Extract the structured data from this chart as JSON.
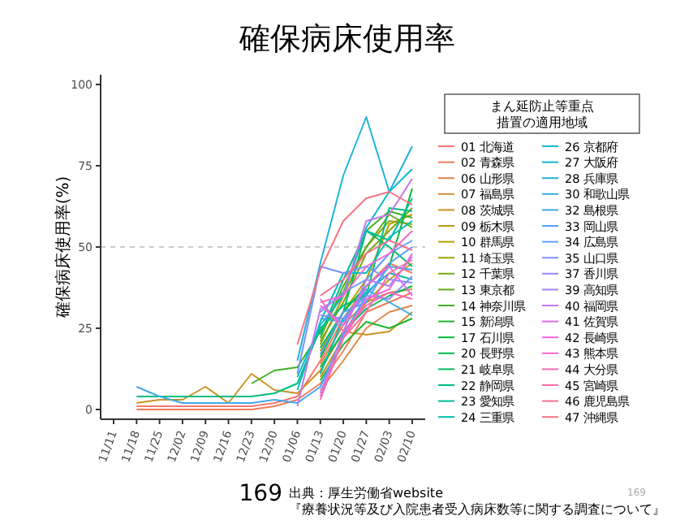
{
  "chart_data": {
    "type": "line",
    "title": "確保病床使用率",
    "ylabel": "確保病床使用率(%)",
    "legend_title": "まん延防止等重点措置の適用地域",
    "legend": "right",
    "grid": false,
    "marker": "none",
    "line_style": "solid",
    "categories": [
      "11/11",
      "11/18",
      "11/25",
      "12/02",
      "12/09",
      "12/16",
      "12/23",
      "12/30",
      "01/06",
      "01/13",
      "01/20",
      "01/27",
      "02/03",
      "02/10"
    ],
    "ylim": [
      -3,
      103
    ],
    "yticks": [
      0,
      25,
      50,
      75,
      100
    ],
    "ref_lines": [
      {
        "axis": "y",
        "value": 50,
        "color": "#bbbbbb",
        "line_style": "dashed"
      }
    ],
    "annotations": [
      "169",
      "出典：厚生労働省website",
      "『療養状況等及び入院患者受入病床数等に関する調査について』",
      "169"
    ],
    "series": [
      {
        "name": "01 北海道",
        "color": "#F8766D",
        "values": [
          null,
          1,
          1,
          1,
          1,
          1,
          1,
          2,
          4,
          15,
          28,
          38,
          45,
          42
        ]
      },
      {
        "name": "02 青森県",
        "color": "#ED7D5B",
        "values": [
          null,
          0,
          0,
          0,
          0,
          0,
          0,
          1,
          3,
          8,
          18,
          30,
          33,
          36
        ]
      },
      {
        "name": "06 山形県",
        "color": "#E28449",
        "values": [
          null,
          null,
          null,
          null,
          null,
          null,
          null,
          null,
          null,
          6,
          15,
          25,
          30,
          32
        ]
      },
      {
        "name": "07 福島県",
        "color": "#D88B37",
        "values": [
          null,
          null,
          null,
          null,
          null,
          null,
          null,
          null,
          null,
          14,
          26,
          33,
          36,
          37
        ]
      },
      {
        "name": "08 茨城県",
        "color": "#CD9124",
        "values": [
          null,
          2,
          3,
          3,
          7,
          2,
          11,
          6,
          5,
          12,
          24,
          23,
          24,
          30
        ]
      },
      {
        "name": "09 栃木県",
        "color": "#C29812",
        "values": [
          null,
          null,
          null,
          null,
          null,
          null,
          null,
          null,
          null,
          10,
          22,
          33,
          40,
          45
        ]
      },
      {
        "name": "10 群馬県",
        "color": "#B79F00",
        "values": [
          null,
          null,
          null,
          null,
          null,
          null,
          null,
          null,
          null,
          18,
          30,
          40,
          57,
          60
        ]
      },
      {
        "name": "11 埼玉県",
        "color": "#99A409",
        "values": [
          null,
          null,
          null,
          null,
          null,
          null,
          null,
          null,
          null,
          20,
          35,
          50,
          58,
          57
        ]
      },
      {
        "name": "12 千葉県",
        "color": "#7AA813",
        "values": [
          null,
          null,
          null,
          null,
          null,
          null,
          null,
          null,
          null,
          21,
          33,
          48,
          55,
          62
        ]
      },
      {
        "name": "13 東京都",
        "color": "#5CAD1C",
        "values": [
          null,
          null,
          null,
          null,
          null,
          null,
          null,
          null,
          null,
          22,
          38,
          50,
          60,
          56
        ]
      },
      {
        "name": "14 神奈川県",
        "color": "#3DB125",
        "values": [
          null,
          null,
          null,
          null,
          null,
          null,
          8,
          12,
          13,
          24,
          36,
          55,
          61,
          59
        ]
      },
      {
        "name": "15 新潟県",
        "color": "#1FB62F",
        "values": [
          null,
          null,
          null,
          null,
          null,
          null,
          null,
          null,
          null,
          9,
          20,
          27,
          25,
          28
        ]
      },
      {
        "name": "17 石川県",
        "color": "#00BA38",
        "values": [
          null,
          null,
          null,
          null,
          null,
          null,
          null,
          null,
          null,
          16,
          30,
          38,
          44,
          68
        ]
      },
      {
        "name": "20 長野県",
        "color": "#00BB4F",
        "values": [
          null,
          null,
          null,
          null,
          null,
          null,
          null,
          null,
          null,
          13,
          24,
          31,
          35,
          38
        ]
      },
      {
        "name": "21 岐阜県",
        "color": "#00BC67",
        "values": [
          null,
          null,
          null,
          null,
          null,
          null,
          null,
          null,
          null,
          19,
          30,
          55,
          50,
          44
        ]
      },
      {
        "name": "22 静岡県",
        "color": "#00BD7E",
        "values": [
          null,
          4,
          4,
          4,
          4,
          4,
          4,
          5,
          8,
          25,
          32,
          35,
          62,
          61
        ]
      },
      {
        "name": "23 愛知県",
        "color": "#00BD95",
        "values": [
          null,
          null,
          null,
          null,
          null,
          null,
          null,
          null,
          null,
          23,
          40,
          55,
          52,
          65
        ]
      },
      {
        "name": "24 三重県",
        "color": "#00BEAD",
        "values": [
          null,
          null,
          null,
          null,
          null,
          null,
          null,
          null,
          null,
          11,
          28,
          36,
          42,
          40
        ]
      },
      {
        "name": "26 京都府",
        "color": "#00BFC4",
        "values": [
          null,
          null,
          null,
          null,
          null,
          null,
          null,
          null,
          6,
          27,
          42,
          42,
          53,
          58
        ]
      },
      {
        "name": "27 大阪府",
        "color": "#10B9CE",
        "values": [
          null,
          null,
          null,
          null,
          null,
          null,
          null,
          null,
          10,
          26,
          35,
          56,
          67,
          74
        ]
      },
      {
        "name": "28 兵庫県",
        "color": "#20B3D8",
        "values": [
          null,
          null,
          null,
          null,
          null,
          null,
          null,
          null,
          15,
          45,
          72,
          90,
          67,
          81
        ]
      },
      {
        "name": "30 和歌山県",
        "color": "#31AEE2",
        "values": [
          null,
          null,
          null,
          null,
          null,
          null,
          null,
          null,
          null,
          28,
          27,
          37,
          33,
          29
        ]
      },
      {
        "name": "32 島根県",
        "color": "#41A8EB",
        "values": [
          null,
          7,
          4,
          2,
          2,
          2,
          2,
          3,
          2,
          7,
          23,
          35,
          44,
          43
        ]
      },
      {
        "name": "33 岡山県",
        "color": "#51A2F5",
        "values": [
          null,
          null,
          null,
          null,
          null,
          null,
          null,
          null,
          null,
          17,
          30,
          33,
          45,
          50
        ]
      },
      {
        "name": "34 広島県",
        "color": "#619CFF",
        "values": [
          null,
          null,
          null,
          null,
          null,
          null,
          null,
          null,
          null,
          30,
          36,
          40,
          48,
          52
        ]
      },
      {
        "name": "35 山口県",
        "color": "#7A93FA",
        "values": [
          null,
          null,
          null,
          null,
          null,
          null,
          null,
          null,
          11,
          44,
          42,
          44,
          40,
          39
        ]
      },
      {
        "name": "37 香川県",
        "color": "#9289F6",
        "values": [
          null,
          null,
          null,
          null,
          null,
          null,
          null,
          null,
          null,
          29,
          28,
          35,
          34,
          41
        ]
      },
      {
        "name": "39 高知県",
        "color": "#AB80F1",
        "values": [
          null,
          null,
          null,
          null,
          null,
          null,
          null,
          null,
          null,
          5,
          24,
          40,
          38,
          47
        ]
      },
      {
        "name": "40 福岡県",
        "color": "#C477EC",
        "values": [
          null,
          null,
          null,
          null,
          null,
          null,
          null,
          null,
          1,
          31,
          35,
          58,
          60,
          71
        ]
      },
      {
        "name": "41 佐賀県",
        "color": "#DC6DE8",
        "values": [
          null,
          null,
          null,
          null,
          null,
          null,
          null,
          null,
          null,
          32,
          26,
          38,
          44,
          35
        ]
      },
      {
        "name": "42 長崎県",
        "color": "#F564E3",
        "values": [
          null,
          null,
          null,
          null,
          null,
          null,
          null,
          null,
          null,
          4,
          22,
          34,
          37,
          48
        ]
      },
      {
        "name": "43 熊本県",
        "color": "#F667CF",
        "values": [
          null,
          null,
          null,
          null,
          null,
          null,
          null,
          null,
          null,
          33,
          35,
          44,
          48,
          55
        ]
      },
      {
        "name": "44 大分県",
        "color": "#F66ABC",
        "values": [
          null,
          null,
          null,
          null,
          null,
          null,
          null,
          null,
          null,
          34,
          24,
          32,
          36,
          34
        ]
      },
      {
        "name": "45 宮崎県",
        "color": "#F76DA8",
        "values": [
          null,
          null,
          null,
          null,
          null,
          null,
          null,
          null,
          null,
          3,
          22,
          30,
          42,
          46
        ]
      },
      {
        "name": "46 鹿児島県",
        "color": "#F77094",
        "values": [
          null,
          null,
          null,
          null,
          null,
          null,
          null,
          null,
          null,
          35,
          40,
          48,
          52,
          49
        ]
      },
      {
        "name": "47 沖縄県",
        "color": "#F87381",
        "values": [
          null,
          null,
          null,
          null,
          null,
          null,
          null,
          null,
          20,
          43,
          58,
          65,
          67,
          63
        ]
      }
    ]
  }
}
